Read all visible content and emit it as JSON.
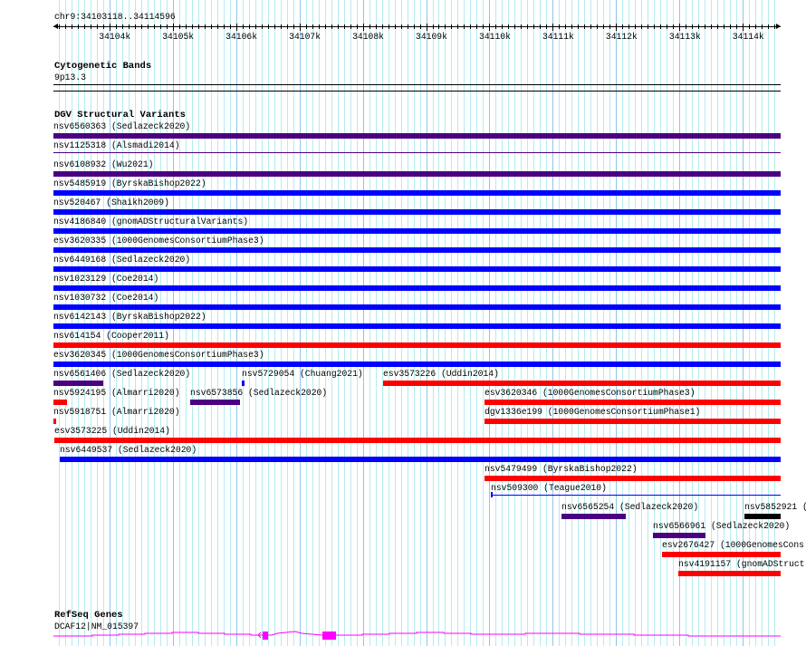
{
  "ruler": {
    "location": "chr9:34103118..34114596",
    "start": 34103118,
    "end": 34114596,
    "tick_labels": [
      "34104k",
      "34105k",
      "34106k",
      "34107k",
      "34108k",
      "34109k",
      "34110k",
      "34111k",
      "34112k",
      "34113k",
      "34114k"
    ]
  },
  "cyto": {
    "title": "Cytogenetic Bands",
    "band": "9p13.3"
  },
  "dgv": {
    "title": "DGV Structural Variants",
    "colors": {
      "purple": "#4b0082",
      "blue": "#0000ff",
      "red": "#ff0000",
      "black": "#000000"
    },
    "rows": [
      [
        {
          "label": "nsv6560363 (Sedlazeck2020)",
          "start": 34103118,
          "end": 34114596,
          "color": "purple"
        }
      ],
      [
        {
          "label": "nsv1125318 (Alsmadi2014)",
          "start": 34103118,
          "end": 34114596,
          "color": "purple",
          "thin": true
        }
      ],
      [
        {
          "label": "nsv6108932 (Wu2021)",
          "start": 34103118,
          "end": 34114596,
          "color": "purple"
        }
      ],
      [
        {
          "label": "nsv5485919 (ByrskaBishop2022)",
          "start": 34103118,
          "end": 34114596,
          "color": "blue"
        }
      ],
      [
        {
          "label": "nsv520467 (Shaikh2009)",
          "start": 34103118,
          "end": 34114596,
          "color": "blue"
        }
      ],
      [
        {
          "label": "nsv4186840 (gnomADStructuralVariants)",
          "start": 34103118,
          "end": 34114596,
          "color": "blue"
        }
      ],
      [
        {
          "label": "esv3620335 (1000GenomesConsortiumPhase3)",
          "start": 34103118,
          "end": 34114596,
          "color": "blue"
        }
      ],
      [
        {
          "label": "nsv6449168 (Sedlazeck2020)",
          "start": 34103118,
          "end": 34114596,
          "color": "blue"
        }
      ],
      [
        {
          "label": "nsv1023129 (Coe2014)",
          "start": 34103118,
          "end": 34114596,
          "color": "blue"
        }
      ],
      [
        {
          "label": "nsv1030732 (Coe2014)",
          "start": 34103118,
          "end": 34114596,
          "color": "blue"
        }
      ],
      [
        {
          "label": "nsv6142143 (ByrskaBishop2022)",
          "start": 34103118,
          "end": 34114596,
          "color": "blue"
        }
      ],
      [
        {
          "label": "nsv614154 (Cooper2011)",
          "start": 34103118,
          "end": 34114596,
          "color": "red"
        }
      ],
      [
        {
          "label": "esv3620345 (1000GenomesConsortiumPhase3)",
          "start": 34103118,
          "end": 34114596,
          "color": "blue"
        }
      ],
      [
        {
          "label": "nsv6561406 (Sedlazeck2020)",
          "start": 34103118,
          "end": 34103904,
          "color": "purple"
        },
        {
          "label": "nsv5729054 (Chuang2021)",
          "start": 34106091,
          "end": 34106134,
          "color": "blue"
        },
        {
          "label": "esv3573226 (Uddin2014)",
          "start": 34108321,
          "end": 34114596,
          "color": "red"
        }
      ],
      [
        {
          "label": "nsv5924195 (Almarri2020)",
          "start": 34103118,
          "end": 34103332,
          "color": "red"
        },
        {
          "label": "nsv6573856 (Sedlazeck2020)",
          "start": 34105276,
          "end": 34106063,
          "color": "purple"
        },
        {
          "label": "esv3620346 (1000GenomesConsortiumPhase3)",
          "start": 34109922,
          "end": 34114596,
          "color": "red"
        }
      ],
      [
        {
          "label": "nsv5918751 (Almarri2020)",
          "start": 34103118,
          "end": 34103161,
          "color": "red"
        },
        {
          "label": "dgv1336e199 (1000GenomesConsortiumPhase1)",
          "start": 34109922,
          "end": 34114596,
          "color": "red"
        }
      ],
      [
        {
          "label": "esv3573225 (Uddin2014)",
          "start": 34103132,
          "end": 34114596,
          "color": "red"
        }
      ],
      [
        {
          "label": "nsv6449537 (Sedlazeck2020)",
          "start": 34103218,
          "end": 34114596,
          "color": "blue"
        }
      ],
      [
        {
          "label": "nsv5479499 (ByrskaBishop2022)",
          "start": 34109922,
          "end": 34114596,
          "color": "red"
        }
      ],
      [
        {
          "label": "nsv509300 (Teague2010)",
          "start": 34110022,
          "end": 34114596,
          "color": "blue",
          "thin": true
        }
      ],
      [
        {
          "label": "nsv6565254 (Sedlazeck2020)",
          "start": 34111137,
          "end": 34112152,
          "color": "purple"
        },
        {
          "label": "nsv5852921 (",
          "start": 34114024,
          "end": 34114596,
          "color": "black"
        }
      ],
      [
        {
          "label": "nsv6566961 (Sedlazeck2020)",
          "start": 34112581,
          "end": 34113410,
          "color": "purple"
        }
      ],
      [
        {
          "label": "esv2676427 (1000GenomesCons",
          "start": 34112724,
          "end": 34114596,
          "color": "red"
        }
      ],
      [
        {
          "label": "nsv4191157 (gnomADStruct",
          "start": 34112981,
          "end": 34114596,
          "color": "red"
        }
      ]
    ]
  },
  "refseq": {
    "title": "RefSeq Genes",
    "gene": "DCAF12|NM_015397",
    "color": "#ff00ff",
    "strand": "-",
    "exons": [
      [
        34106420,
        34106506
      ],
      [
        34107363,
        34107578
      ]
    ]
  }
}
